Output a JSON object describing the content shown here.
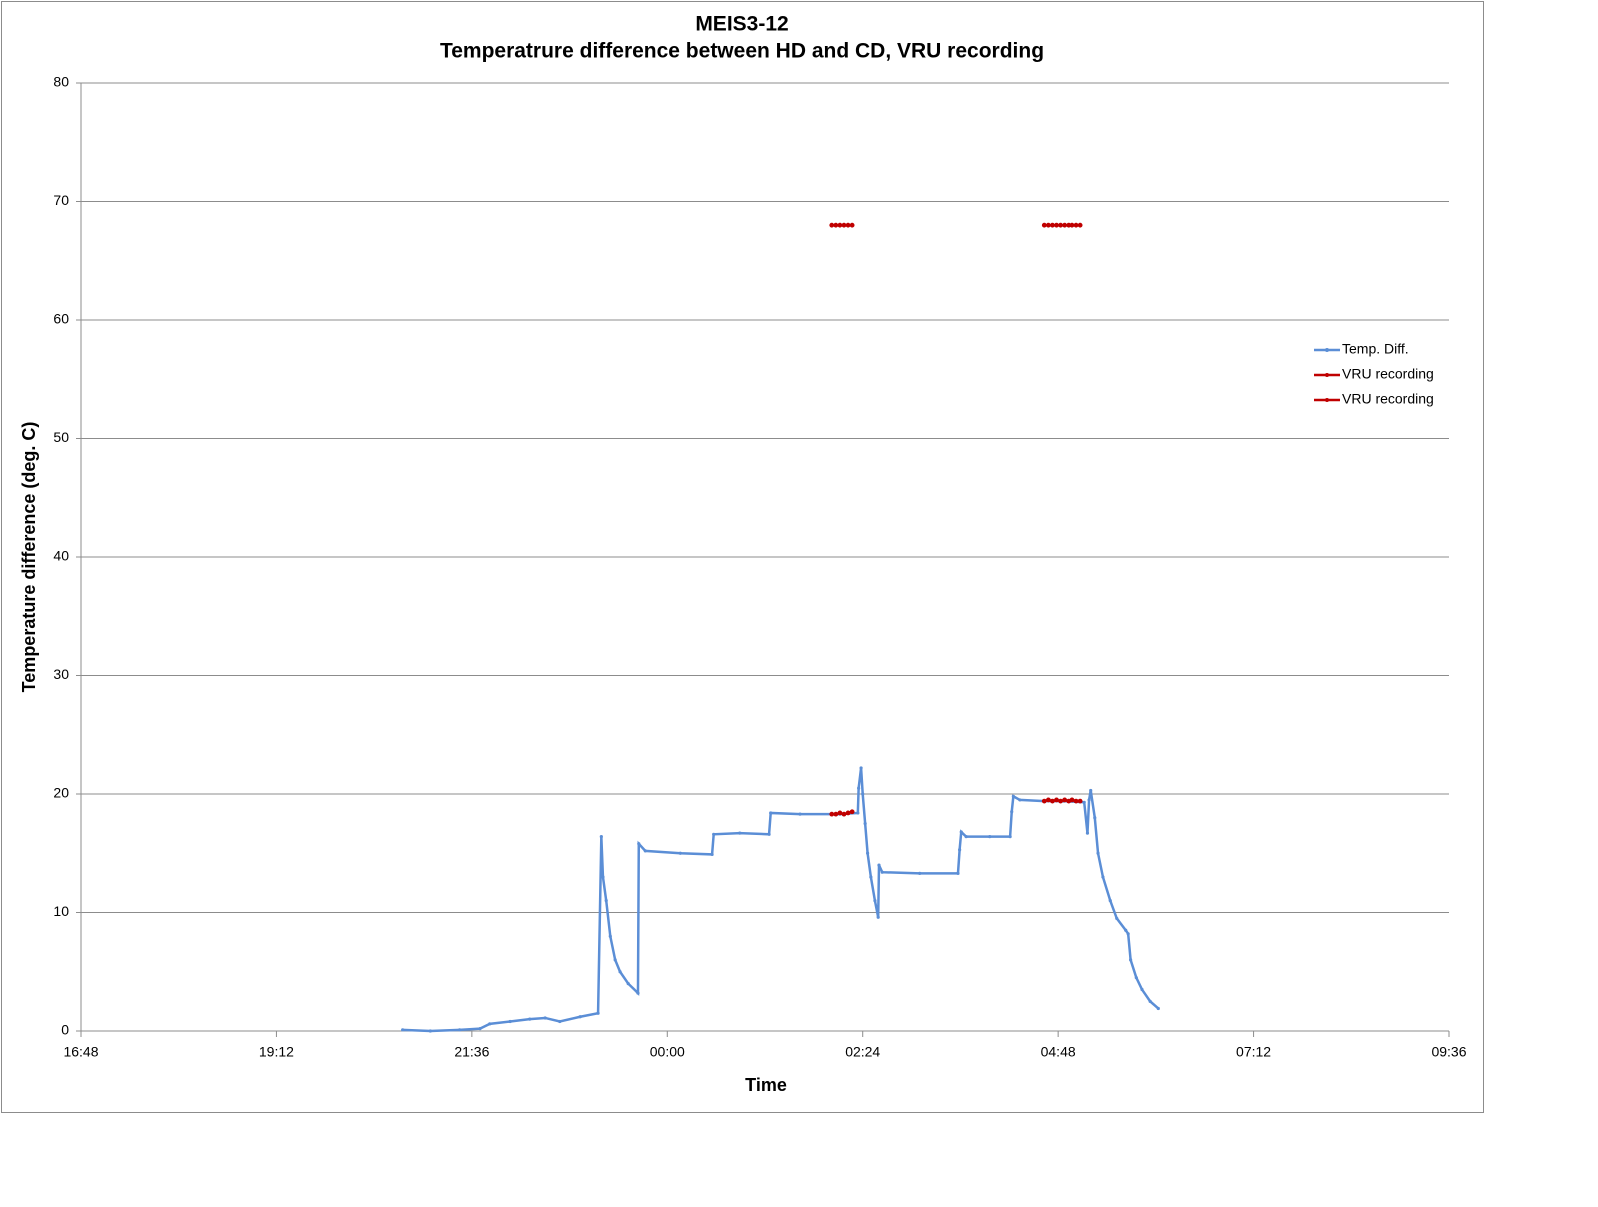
{
  "chart_data": {
    "type": "line",
    "title": "MEIS3-12",
    "subtitle": "Temperatrure difference between HD and CD, VRU recording",
    "x_label": "Time",
    "y_label": "Temperature difference (deg. C)",
    "xlim": [
      16.8,
      33.6
    ],
    "xticks": [
      {
        "value": 16.8,
        "label": "16:48"
      },
      {
        "value": 19.2,
        "label": "19:12"
      },
      {
        "value": 21.6,
        "label": "21:36"
      },
      {
        "value": 24,
        "label": "00:00"
      },
      {
        "value": 26.4,
        "label": "02:24"
      },
      {
        "value": 28.8,
        "label": "04:48"
      },
      {
        "value": 31.2,
        "label": "07:12"
      },
      {
        "value": 33.6,
        "label": "09:36"
      }
    ],
    "ylim": [
      0,
      80
    ],
    "yticks": [
      0,
      10,
      20,
      30,
      40,
      50,
      60,
      70,
      80
    ],
    "grid": true,
    "legend": "right",
    "series": [
      {
        "name": "Temp. Diff.",
        "color": "#5b8ed6",
        "x": [
          20.75,
          21.09,
          21.45,
          21.7,
          21.82,
          22.07,
          22.31,
          22.5,
          22.68,
          22.93,
          23.15,
          23.19,
          23.21,
          23.25,
          23.3,
          23.36,
          23.42,
          23.52,
          23.64,
          23.65,
          23.73,
          24.16,
          24.55,
          24.57,
          24.89,
          25.25,
          25.27,
          25.63,
          26.01,
          26.12,
          26.34,
          26.35,
          26.38,
          26.4,
          26.43,
          26.46,
          26.5,
          26.55,
          26.59,
          26.6,
          26.64,
          27.1,
          27.57,
          27.59,
          27.61,
          27.67,
          27.96,
          28.21,
          28.23,
          28.25,
          28.33,
          28.63,
          28.87,
          29.12,
          29.16,
          29.18,
          29.2,
          29.25,
          29.29,
          29.35,
          29.44,
          29.52,
          29.63,
          29.66,
          29.69,
          29.76,
          29.83,
          29.93,
          30.03
        ],
        "values": [
          0.1,
          0.0,
          0.1,
          0.2,
          0.6,
          0.8,
          1.0,
          1.1,
          0.8,
          1.2,
          1.5,
          16.4,
          13.0,
          11.0,
          8.0,
          6.0,
          5.0,
          4.0,
          3.2,
          15.8,
          15.2,
          15.0,
          14.9,
          16.6,
          16.7,
          16.6,
          18.4,
          18.3,
          18.3,
          18.3,
          18.4,
          20.5,
          22.2,
          20.0,
          17.5,
          15.0,
          13.0,
          11.0,
          9.6,
          14.0,
          13.4,
          13.3,
          13.3,
          15.3,
          16.8,
          16.4,
          16.4,
          16.4,
          18.5,
          19.8,
          19.5,
          19.4,
          19.4,
          19.3,
          16.7,
          19.5,
          20.3,
          18.0,
          15.0,
          13.0,
          11.0,
          9.5,
          8.5,
          8.2,
          6.0,
          4.5,
          3.5,
          2.5,
          1.9
        ]
      },
      {
        "name": "VRU recording",
        "color": "#c00000",
        "x": [
          26.02,
          26.07,
          26.12,
          26.17,
          26.22,
          26.27,
          27.35,
          28.63,
          28.68,
          28.73,
          28.78,
          28.83,
          28.88,
          28.93,
          28.97,
          29.02,
          29.07
        ],
        "values": [
          68,
          68,
          68,
          68,
          68,
          68,
          null,
          68,
          68,
          68,
          68,
          68,
          68,
          68,
          68,
          68,
          68
        ]
      },
      {
        "name": "VRU recording",
        "color": "#c00000",
        "x": [
          26.02,
          26.07,
          26.12,
          26.17,
          26.22,
          26.27,
          27.35,
          28.63,
          28.68,
          28.73,
          28.78,
          28.83,
          28.88,
          28.93,
          28.97,
          29.02,
          29.07
        ],
        "values": [
          18.3,
          18.3,
          18.4,
          18.3,
          18.4,
          18.5,
          null,
          19.4,
          19.5,
          19.4,
          19.5,
          19.4,
          19.5,
          19.4,
          19.5,
          19.4,
          19.4
        ]
      }
    ]
  }
}
